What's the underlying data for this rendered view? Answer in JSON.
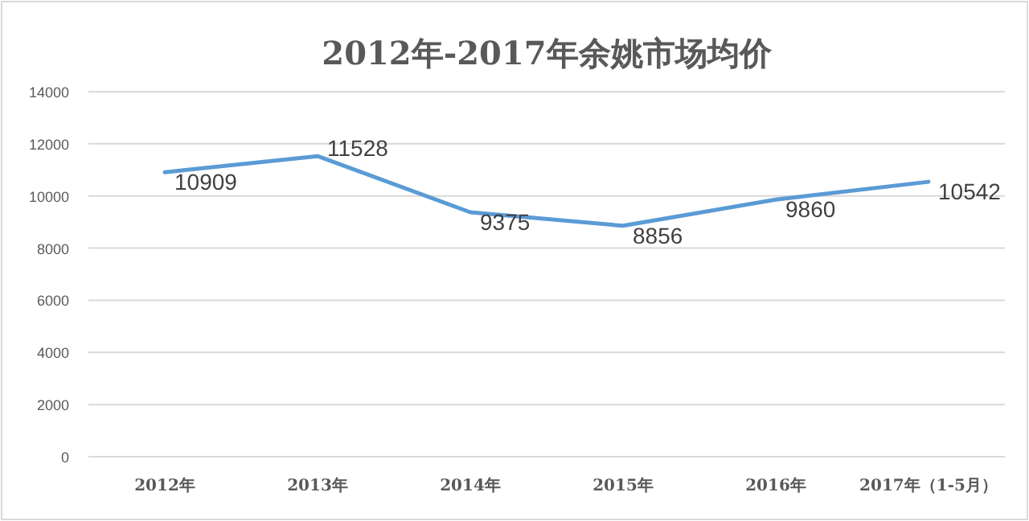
{
  "chart_data": {
    "type": "line",
    "title": "2012年-2017年余姚市场均价",
    "categories": [
      "2012年",
      "2013年",
      "2014年",
      "2015年",
      "2016年",
      "2017年（1-5月）"
    ],
    "values": [
      10909,
      11528,
      9375,
      8856,
      9860,
      10542
    ],
    "color": "#5b9bd5",
    "ylim": [
      0,
      14000
    ],
    "yticks": [
      0,
      2000,
      4000,
      6000,
      8000,
      10000,
      12000,
      14000
    ],
    "grid": "y",
    "data_labels": true,
    "marker": "none",
    "line_style": "solid"
  }
}
